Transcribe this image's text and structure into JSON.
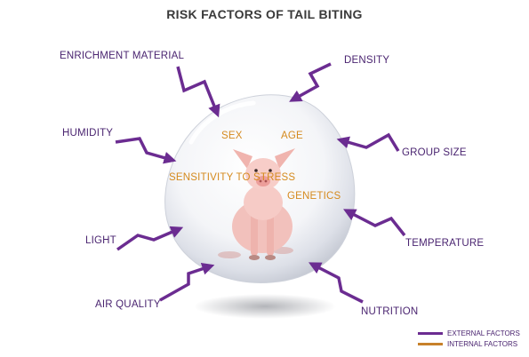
{
  "title": "RISK FACTORS OF TAIL BITING",
  "external_factors": [
    "ENRICHMENT MATERIAL",
    "DENSITY",
    "HUMIDITY",
    "GROUP SIZE",
    "LIGHT",
    "TEMPERATURE",
    "AIR QUALITY",
    "NUTRITION"
  ],
  "internal_factors": [
    "SEX",
    "AGE",
    "SENSITIVITY TO STRESS",
    "GENETICS"
  ],
  "legend": {
    "external": "EXTERNAL FACTORS",
    "internal": "INTERNAL FACTORS"
  },
  "colors": {
    "external": "#6b2c91",
    "internal": "#c8812a",
    "title": "#3a3a3a",
    "bubble": "#e4e7ee"
  },
  "icons": {
    "center": "pig-icon",
    "arrow": "zigzag-arrow-icon"
  }
}
